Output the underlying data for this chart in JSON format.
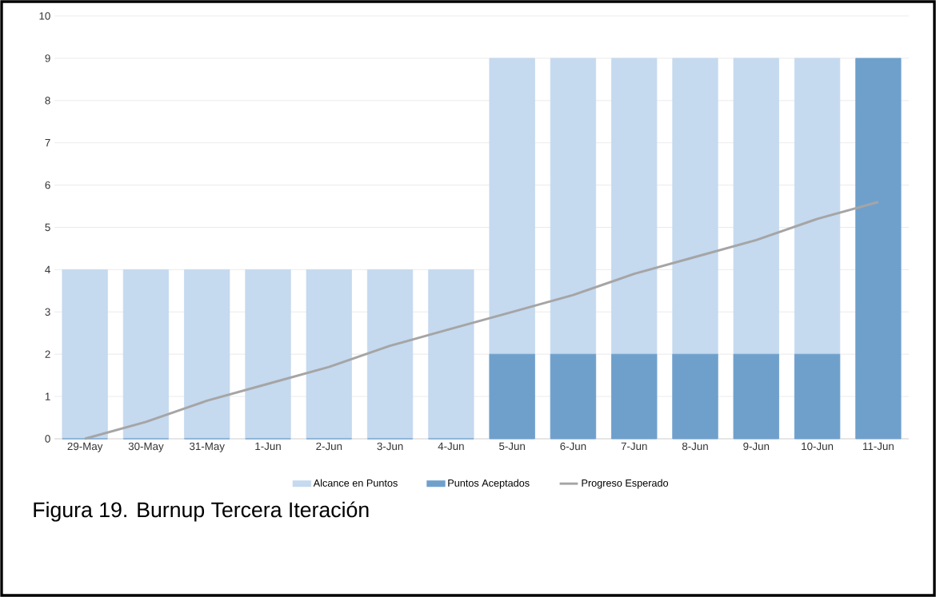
{
  "chart_data": {
    "type": "bar",
    "categories": [
      "29-May",
      "30-May",
      "31-May",
      "1-Jun",
      "2-Jun",
      "3-Jun",
      "4-Jun",
      "5-Jun",
      "6-Jun",
      "7-Jun",
      "8-Jun",
      "9-Jun",
      "10-Jun",
      "11-Jun"
    ],
    "series": [
      {
        "name": "Alcance en Puntos",
        "color": "#c5d9ef",
        "values": [
          4,
          4,
          4,
          4,
          4,
          4,
          4,
          9,
          9,
          9,
          9,
          9,
          9,
          null
        ]
      },
      {
        "name": "Puntos Aceptados",
        "color": "#6fa0cc",
        "values": [
          0,
          0,
          0,
          0,
          0,
          0,
          0,
          2,
          2,
          2,
          2,
          2,
          2,
          9
        ]
      },
      {
        "name": "Progreso Esperado",
        "type": "line",
        "color": "#a5a5a5",
        "values": [
          0,
          0.4,
          0.9,
          1.3,
          1.7,
          2.2,
          2.6,
          3.0,
          3.4,
          3.9,
          4.3,
          4.7,
          5.2,
          5.6
        ]
      }
    ],
    "ylim": [
      0,
      10
    ],
    "yticks": [
      0,
      1,
      2,
      3,
      4,
      5,
      6,
      7,
      8,
      9,
      10
    ],
    "grid": "y",
    "legend": "bottom",
    "marker": "none",
    "annotations": [
      "Figura 19. Burnup Tercera Iteración"
    ]
  }
}
